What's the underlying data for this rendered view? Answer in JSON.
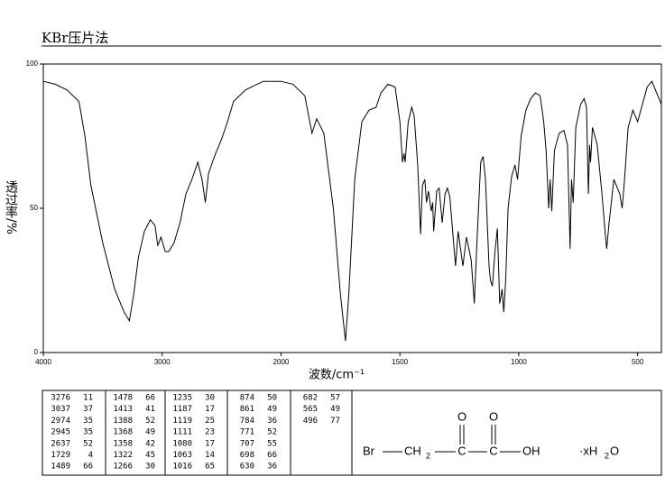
{
  "title": "KBr压片法",
  "chart_data": {
    "type": "line",
    "x_label": "波数/cm⁻¹",
    "y_label": "透过率/%",
    "xlim": [
      4000,
      400
    ],
    "xticks": [
      4000,
      3000,
      2000,
      1500,
      1000,
      500
    ],
    "ylim": [
      0,
      100
    ],
    "yticks": [
      0,
      50,
      100
    ],
    "color": "#000000",
    "x": [
      4000,
      3900,
      3800,
      3700,
      3650,
      3600,
      3500,
      3400,
      3320,
      3276,
      3240,
      3200,
      3150,
      3100,
      3060,
      3037,
      3010,
      2974,
      2945,
      2900,
      2850,
      2800,
      2750,
      2700,
      2665,
      2637,
      2610,
      2560,
      2500,
      2450,
      2400,
      2300,
      2150,
      2000,
      1950,
      1900,
      1870,
      1850,
      1820,
      1780,
      1750,
      1729,
      1715,
      1690,
      1660,
      1630,
      1600,
      1580,
      1550,
      1520,
      1500,
      1489,
      1483,
      1478,
      1465,
      1450,
      1440,
      1425,
      1413,
      1405,
      1395,
      1388,
      1380,
      1368,
      1362,
      1358,
      1345,
      1335,
      1322,
      1310,
      1300,
      1290,
      1266,
      1255,
      1245,
      1235,
      1220,
      1200,
      1187,
      1175,
      1160,
      1150,
      1140,
      1125,
      1119,
      1111,
      1100,
      1090,
      1080,
      1070,
      1063,
      1055,
      1045,
      1030,
      1016,
      1005,
      990,
      970,
      950,
      930,
      910,
      895,
      885,
      874,
      868,
      861,
      850,
      830,
      810,
      795,
      784,
      778,
      771,
      760,
      740,
      725,
      715,
      707,
      702,
      698,
      690,
      670,
      650,
      635,
      630,
      620,
      600,
      590,
      575,
      565,
      555,
      540,
      520,
      500,
      480,
      460,
      440,
      420,
      400
    ],
    "values": [
      94,
      93,
      91,
      87,
      75,
      58,
      38,
      22,
      14,
      11,
      20,
      33,
      42,
      46,
      44,
      37,
      40,
      35,
      35,
      38,
      45,
      55,
      60,
      66,
      60,
      52,
      62,
      68,
      74,
      80,
      87,
      91,
      94,
      94,
      93,
      89,
      76,
      81,
      76,
      50,
      20,
      4,
      20,
      60,
      80,
      84,
      85,
      90,
      93,
      92,
      80,
      66,
      69,
      66,
      80,
      85,
      82,
      65,
      41,
      58,
      60,
      52,
      56,
      49,
      52,
      42,
      56,
      57,
      45,
      55,
      57,
      54,
      30,
      42,
      36,
      30,
      40,
      32,
      17,
      40,
      66,
      68,
      60,
      30,
      25,
      23,
      35,
      43,
      17,
      22,
      14,
      25,
      50,
      61,
      65,
      60,
      75,
      84,
      88,
      90,
      89,
      80,
      70,
      50,
      60,
      49,
      70,
      76,
      77,
      72,
      36,
      60,
      52,
      78,
      86,
      88,
      85,
      55,
      72,
      66,
      78,
      72,
      55,
      40,
      36,
      45,
      60,
      58,
      55,
      50,
      60,
      78,
      84,
      80,
      86,
      92,
      94,
      90,
      86
    ]
  },
  "peak_table": {
    "columns": [
      [
        [
          3276,
          11
        ],
        [
          3037,
          37
        ],
        [
          2974,
          35
        ],
        [
          2945,
          35
        ],
        [
          2637,
          52
        ],
        [
          1729,
          4
        ],
        [
          1489,
          66
        ]
      ],
      [
        [
          1478,
          66
        ],
        [
          1413,
          41
        ],
        [
          1388,
          52
        ],
        [
          1368,
          49
        ],
        [
          1358,
          42
        ],
        [
          1322,
          45
        ],
        [
          1266,
          30
        ]
      ],
      [
        [
          1235,
          30
        ],
        [
          1187,
          17
        ],
        [
          1119,
          25
        ],
        [
          1111,
          23
        ],
        [
          1080,
          17
        ],
        [
          1063,
          14
        ],
        [
          1016,
          65
        ]
      ],
      [
        [
          874,
          50
        ],
        [
          861,
          49
        ],
        [
          784,
          36
        ],
        [
          771,
          52
        ],
        [
          707,
          55
        ],
        [
          698,
          66
        ],
        [
          630,
          36
        ]
      ],
      [
        [
          682,
          57
        ],
        [
          565,
          49
        ],
        [
          496,
          77
        ]
      ]
    ]
  },
  "structure": {
    "br": "Br",
    "ch": "CH",
    "ch_sub": "2",
    "c1": "C",
    "c2": "C",
    "o1": "O",
    "o2": "O",
    "oh": "OH",
    "water": "·xH",
    "water_sub": "2",
    "water_o": "O"
  }
}
